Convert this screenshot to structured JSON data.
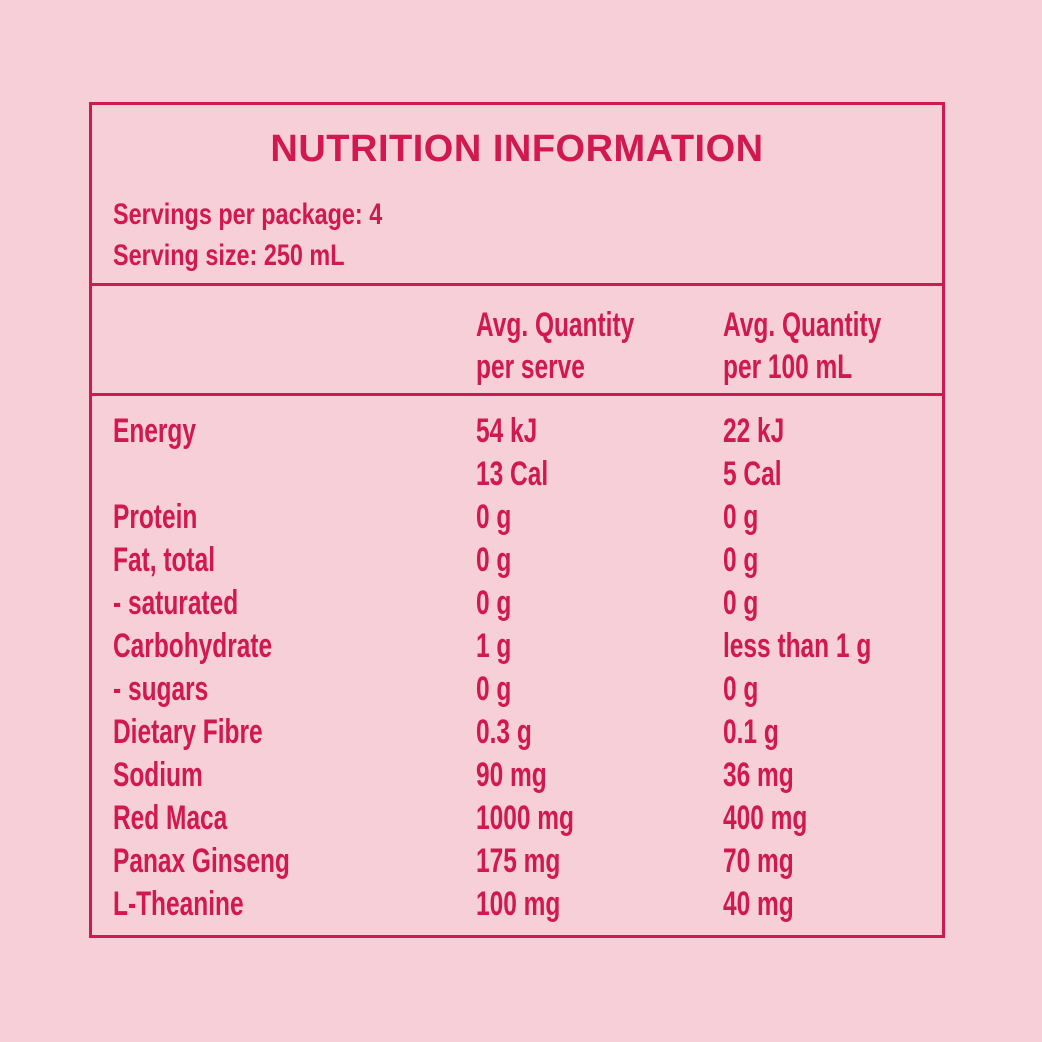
{
  "panel": {
    "title": "NUTRITION INFORMATION",
    "servings_per_package": "Servings per package: 4",
    "serving_size": "Serving size: 250 mL"
  },
  "columns": {
    "serve_line1": "Avg. Quantity",
    "serve_line2": "per serve",
    "per100_line1": "Avg. Quantity",
    "per100_line2": "per 100 mL"
  },
  "rows": [
    {
      "name": "Energy",
      "serve": "54 kJ",
      "serve2": "13 Cal",
      "per100": "22 kJ",
      "per100_2": "5 Cal"
    },
    {
      "name": "Protein",
      "serve": "0 g",
      "per100": "0 g"
    },
    {
      "name": "Fat, total",
      "serve": "0 g",
      "per100": "0 g"
    },
    {
      "name": "- saturated",
      "serve": "0 g",
      "per100": "0 g"
    },
    {
      "name": "Carbohydrate",
      "serve": "1 g",
      "per100": "less than 1 g"
    },
    {
      "name": "- sugars",
      "serve": "0 g",
      "per100": "0 g"
    },
    {
      "name": "Dietary Fibre",
      "serve": "0.3 g",
      "per100": "0.1 g"
    },
    {
      "name": "Sodium",
      "serve": "90 mg",
      "per100": "36 mg"
    },
    {
      "name": "Red Maca",
      "serve": "1000 mg",
      "per100": "400 mg"
    },
    {
      "name": "Panax Ginseng",
      "serve": "175 mg",
      "per100": "70 mg"
    },
    {
      "name": "L-Theanine",
      "serve": "100 mg",
      "per100": "40 mg"
    }
  ],
  "colors": {
    "background": "#f7cfd9",
    "ink": "#d0194f"
  }
}
